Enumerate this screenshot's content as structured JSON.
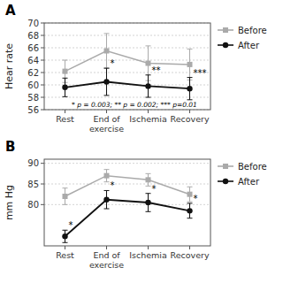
{
  "chart_data": [
    {
      "type": "line",
      "title": "A",
      "y_label": "Hear rate",
      "categories": [
        "Rest",
        "End of\nexercise",
        "Ischemia",
        "Recovery"
      ],
      "series": [
        {
          "name": "Before",
          "color": "#aaaaaa",
          "marker": "square",
          "values": [
            62.2,
            65.5,
            63.5,
            63.3
          ],
          "errors": [
            1.8,
            2.8,
            2.8,
            2.5
          ]
        },
        {
          "name": "After",
          "color": "#111111",
          "marker": "circle",
          "values": [
            59.6,
            60.5,
            59.8,
            59.4
          ],
          "errors": [
            1.5,
            2.2,
            1.8,
            1.8
          ],
          "significance": [
            null,
            "*",
            "**",
            "***"
          ]
        }
      ],
      "ylim": [
        56,
        70
      ],
      "yticks": [
        56,
        58,
        60,
        62,
        64,
        66,
        68,
        70
      ],
      "grid": true,
      "legend": "right",
      "annotation": "* p = 0.003; ** p = 0.002; *** p=0.01"
    },
    {
      "type": "line",
      "title": "B",
      "y_label": "mm Hg",
      "categories": [
        "Rest",
        "End of\nexercise",
        "Ischemia",
        "Recovery"
      ],
      "series": [
        {
          "name": "Before",
          "color": "#aaaaaa",
          "marker": "square",
          "values": [
            82.0,
            87.0,
            86.0,
            82.5
          ],
          "errors": [
            2.0,
            1.5,
            1.5,
            1.8
          ]
        },
        {
          "name": "After",
          "color": "#111111",
          "marker": "circle",
          "values": [
            72.3,
            81.2,
            80.5,
            78.5
          ],
          "errors": [
            1.5,
            2.2,
            2.2,
            1.8
          ],
          "significance": [
            "*",
            "*",
            "*",
            "*"
          ]
        }
      ],
      "ylim": [
        70,
        91
      ],
      "yticks": [
        80,
        85,
        90
      ],
      "grid": true,
      "legend": "right"
    }
  ]
}
